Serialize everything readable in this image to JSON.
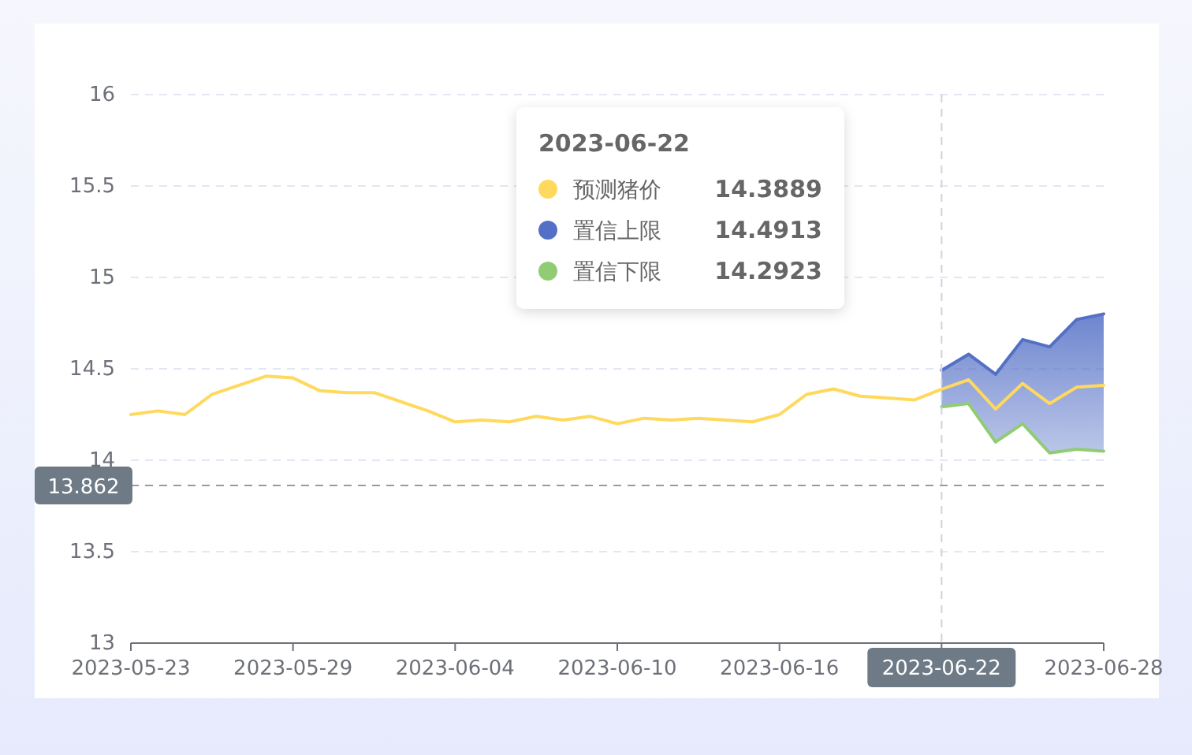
{
  "chart_data": {
    "type": "line",
    "x": [
      "2023-05-23",
      "2023-05-24",
      "2023-05-25",
      "2023-05-26",
      "2023-05-27",
      "2023-05-28",
      "2023-05-29",
      "2023-05-30",
      "2023-05-31",
      "2023-06-01",
      "2023-06-02",
      "2023-06-03",
      "2023-06-04",
      "2023-06-05",
      "2023-06-06",
      "2023-06-07",
      "2023-06-08",
      "2023-06-09",
      "2023-06-10",
      "2023-06-11",
      "2023-06-12",
      "2023-06-13",
      "2023-06-14",
      "2023-06-15",
      "2023-06-16",
      "2023-06-17",
      "2023-06-18",
      "2023-06-19",
      "2023-06-20",
      "2023-06-21",
      "2023-06-22",
      "2023-06-23",
      "2023-06-24",
      "2023-06-25",
      "2023-06-26",
      "2023-06-27",
      "2023-06-28"
    ],
    "series": [
      {
        "name": "预测猪价",
        "color": "#ffd95e",
        "values": [
          14.25,
          14.27,
          14.25,
          14.36,
          14.41,
          14.46,
          14.45,
          14.38,
          14.37,
          14.37,
          14.32,
          14.27,
          14.21,
          14.22,
          14.21,
          14.24,
          14.22,
          14.24,
          14.2,
          14.23,
          14.22,
          14.23,
          14.22,
          14.21,
          14.25,
          14.36,
          14.39,
          14.35,
          14.34,
          14.33,
          14.3889,
          14.44,
          14.28,
          14.42,
          14.31,
          14.4,
          14.41
        ]
      },
      {
        "name": "置信上限",
        "type": "area",
        "color": "#5470c6",
        "x": [
          "2023-06-22",
          "2023-06-23",
          "2023-06-24",
          "2023-06-25",
          "2023-06-26",
          "2023-06-27",
          "2023-06-28"
        ],
        "values": [
          14.4913,
          14.58,
          14.47,
          14.66,
          14.62,
          14.77,
          14.8
        ]
      },
      {
        "name": "置信下限",
        "color": "#91cc75",
        "x": [
          "2023-06-22",
          "2023-06-23",
          "2023-06-24",
          "2023-06-25",
          "2023-06-26",
          "2023-06-27",
          "2023-06-28"
        ],
        "values": [
          14.2923,
          14.31,
          14.1,
          14.2,
          14.04,
          14.06,
          14.05
        ]
      }
    ],
    "xlim": [
      "2023-05-23",
      "2023-06-28"
    ],
    "xticks": [
      "2023-05-23",
      "2023-05-29",
      "2023-06-04",
      "2023-06-10",
      "2023-06-16",
      {
        "value": "2023-06-22",
        "label": null
      },
      "2023-06-28"
    ],
    "ylim": [
      13,
      16
    ],
    "yticks": [
      13,
      13.5,
      14,
      14.5,
      15,
      15.5,
      16
    ],
    "grid": "y",
    "legend": "top",
    "ref_lines": [
      {
        "axis": "x",
        "value": "2023-06-22",
        "label": "2023-06-22",
        "color": "#cfd3dc",
        "line_style": "dashed"
      },
      {
        "axis": "y",
        "value": 13.862,
        "label": "13.862",
        "color": "#9a9a9a",
        "line_style": "dashed"
      }
    ],
    "annotations": [
      "2023-06-22",
      "14.3889",
      "14.4913",
      "14.2923"
    ]
  }
}
